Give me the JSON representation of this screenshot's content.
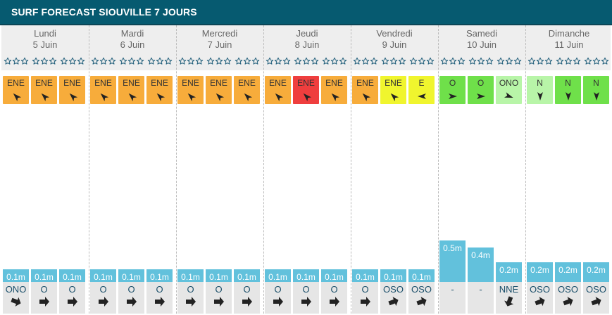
{
  "header": {
    "title": "SURF FORECAST SIOUVILLE 7 JOURS"
  },
  "colors": {
    "header_bg": "#065a70",
    "wind_orange": "#f7ac3b",
    "wind_red": "#ef3e3e",
    "wind_yellow": "#f0f52e",
    "wind_green": "#6fe04a",
    "wind_lightgreen": "#b8f5a8",
    "swell_bar": "#62c1dc"
  },
  "days": [
    {
      "name": "Lundi",
      "date": "5 Juin",
      "slots": [
        {
          "wind": "ENE",
          "wind_color": "#f7ac3b",
          "wind_rot": 225,
          "swell": "0.1m",
          "swell_m": 0.1,
          "swell_dir": "ONO",
          "swell_rot": 20
        },
        {
          "wind": "ENE",
          "wind_color": "#f7ac3b",
          "wind_rot": 225,
          "swell": "0.1m",
          "swell_m": 0.1,
          "swell_dir": "O",
          "swell_rot": 0
        },
        {
          "wind": "ENE",
          "wind_color": "#f7ac3b",
          "wind_rot": 225,
          "swell": "0.1m",
          "swell_m": 0.1,
          "swell_dir": "O",
          "swell_rot": 0
        }
      ]
    },
    {
      "name": "Mardi",
      "date": "6 Juin",
      "slots": [
        {
          "wind": "ENE",
          "wind_color": "#f7ac3b",
          "wind_rot": 225,
          "swell": "0.1m",
          "swell_m": 0.1,
          "swell_dir": "O",
          "swell_rot": 0
        },
        {
          "wind": "ENE",
          "wind_color": "#f7ac3b",
          "wind_rot": 225,
          "swell": "0.1m",
          "swell_m": 0.1,
          "swell_dir": "O",
          "swell_rot": 0
        },
        {
          "wind": "ENE",
          "wind_color": "#f7ac3b",
          "wind_rot": 225,
          "swell": "0.1m",
          "swell_m": 0.1,
          "swell_dir": "O",
          "swell_rot": 0
        }
      ]
    },
    {
      "name": "Mercredi",
      "date": "7 Juin",
      "slots": [
        {
          "wind": "ENE",
          "wind_color": "#f7ac3b",
          "wind_rot": 225,
          "swell": "0.1m",
          "swell_m": 0.1,
          "swell_dir": "O",
          "swell_rot": 0
        },
        {
          "wind": "ENE",
          "wind_color": "#f7ac3b",
          "wind_rot": 225,
          "swell": "0.1m",
          "swell_m": 0.1,
          "swell_dir": "O",
          "swell_rot": 0
        },
        {
          "wind": "ENE",
          "wind_color": "#f7ac3b",
          "wind_rot": 225,
          "swell": "0.1m",
          "swell_m": 0.1,
          "swell_dir": "O",
          "swell_rot": 0
        }
      ]
    },
    {
      "name": "Jeudi",
      "date": "8 Juin",
      "slots": [
        {
          "wind": "ENE",
          "wind_color": "#f7ac3b",
          "wind_rot": 225,
          "swell": "0.1m",
          "swell_m": 0.1,
          "swell_dir": "O",
          "swell_rot": 0
        },
        {
          "wind": "ENE",
          "wind_color": "#ef3e3e",
          "wind_rot": 225,
          "swell": "0.1m",
          "swell_m": 0.1,
          "swell_dir": "O",
          "swell_rot": 0
        },
        {
          "wind": "ENE",
          "wind_color": "#f7ac3b",
          "wind_rot": 225,
          "swell": "0.1m",
          "swell_m": 0.1,
          "swell_dir": "O",
          "swell_rot": 0
        }
      ]
    },
    {
      "name": "Vendredi",
      "date": "9 Juin",
      "slots": [
        {
          "wind": "ENE",
          "wind_color": "#f7ac3b",
          "wind_rot": 225,
          "swell": "0.1m",
          "swell_m": 0.1,
          "swell_dir": "O",
          "swell_rot": 0
        },
        {
          "wind": "ENE",
          "wind_color": "#f0f52e",
          "wind_rot": 225,
          "swell": "0.1m",
          "swell_m": 0.1,
          "swell_dir": "OSO",
          "swell_rot": -20
        },
        {
          "wind": "E",
          "wind_color": "#f0f52e",
          "wind_rot": 180,
          "swell": "0.1m",
          "swell_m": 0.1,
          "swell_dir": "OSO",
          "swell_rot": -20
        }
      ]
    },
    {
      "name": "Samedi",
      "date": "10 Juin",
      "slots": [
        {
          "wind": "O",
          "wind_color": "#6fe04a",
          "wind_rot": 0,
          "swell": "0.5m",
          "swell_m": 0.5,
          "swell_dir": "-",
          "swell_rot": null
        },
        {
          "wind": "O",
          "wind_color": "#6fe04a",
          "wind_rot": 0,
          "swell": "0.4m",
          "swell_m": 0.4,
          "swell_dir": "-",
          "swell_rot": null
        },
        {
          "wind": "ONO",
          "wind_color": "#b8f5a8",
          "wind_rot": 20,
          "swell": "0.2m",
          "swell_m": 0.2,
          "swell_dir": "NNE",
          "swell_rot": 110
        }
      ]
    },
    {
      "name": "Dimanche",
      "date": "11 Juin",
      "slots": [
        {
          "wind": "N",
          "wind_color": "#b8f5a8",
          "wind_rot": 90,
          "swell": "0.2m",
          "swell_m": 0.2,
          "swell_dir": "OSO",
          "swell_rot": -20
        },
        {
          "wind": "N",
          "wind_color": "#6fe04a",
          "wind_rot": 90,
          "swell": "0.2m",
          "swell_m": 0.2,
          "swell_dir": "OSO",
          "swell_rot": -20
        },
        {
          "wind": "N",
          "wind_color": "#6fe04a",
          "wind_rot": 90,
          "swell": "0.2m",
          "swell_m": 0.2,
          "swell_dir": "OSO",
          "swell_rot": -20
        }
      ]
    }
  ]
}
